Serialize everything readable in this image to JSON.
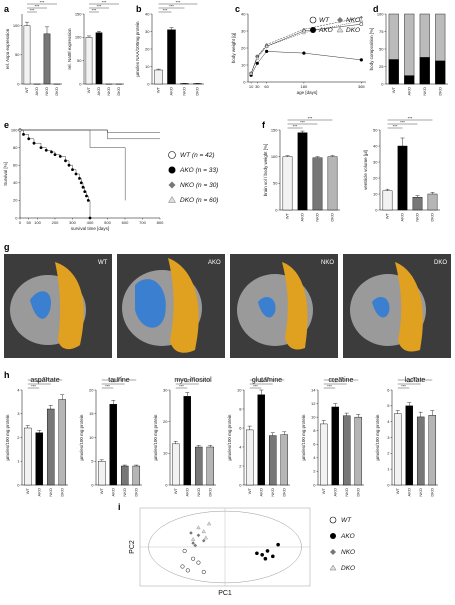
{
  "groups": [
    "WT",
    "AKO",
    "NKO",
    "DKO"
  ],
  "colors": {
    "WT": "#f2f2f2",
    "AKO": "#000000",
    "NKO": "#777777",
    "DKO": "#b5b5b5",
    "brain": "#e0a020",
    "ventricle": "#3a7fd0"
  },
  "panel_letters": {
    "a": "a",
    "b": "b",
    "c": "c",
    "d": "d",
    "e": "e",
    "f": "f",
    "g": "g",
    "h": "h",
    "i": "i"
  },
  "significance": "***",
  "sig_two": "**",
  "sig_one": "*",
  "chart_data": [
    {
      "id": "a1",
      "type": "bar",
      "ylabel": "rel. Aspa expression",
      "categories": [
        "WT",
        "AKO",
        "NKO",
        "DKO"
      ],
      "values": [
        100,
        0,
        86,
        0
      ],
      "errors": [
        6,
        0,
        12,
        0
      ],
      "ylim": [
        0,
        120
      ],
      "ticks": [
        0,
        50,
        100
      ]
    },
    {
      "id": "a2",
      "type": "bar",
      "ylabel": "rel. Nat8l expression",
      "categories": [
        "WT",
        "AKO",
        "NKO",
        "DKO"
      ],
      "values": [
        100,
        110,
        0,
        0
      ],
      "errors": [
        3,
        3,
        0,
        0
      ],
      "ylim": [
        0,
        150
      ],
      "ticks": [
        0,
        50,
        100,
        150
      ]
    },
    {
      "id": "b",
      "type": "bar",
      "ylabel": "µmoles NAA/100mg protein",
      "categories": [
        "WT",
        "AKO",
        "NKO",
        "DKO"
      ],
      "values": [
        8,
        31,
        0.3,
        0.3
      ],
      "errors": [
        0.5,
        1.2,
        0.1,
        0.1
      ],
      "ylim": [
        0,
        40
      ],
      "ticks": [
        0,
        10,
        20,
        30,
        40
      ]
    },
    {
      "id": "c",
      "type": "line",
      "ylabel": "body weight [g]",
      "xlabel": "age [days]",
      "x": [
        10,
        30,
        60,
        180,
        365
      ],
      "xticks": [
        10,
        30,
        60,
        180,
        365
      ],
      "ylim": [
        0,
        40
      ],
      "yticks": [
        0,
        10,
        20,
        30,
        40
      ],
      "series": [
        {
          "name": "WT",
          "values": [
            5,
            15,
            21,
            30,
            34
          ]
        },
        {
          "name": "AKO",
          "values": [
            4,
            11,
            18,
            17,
            13
          ]
        },
        {
          "name": "NKO",
          "values": [
            5,
            15,
            22,
            31,
            38
          ]
        },
        {
          "name": "DKO",
          "values": [
            5,
            14,
            21,
            29,
            36
          ]
        }
      ]
    },
    {
      "id": "d",
      "type": "bar",
      "ylabel": "body composition [%]",
      "categories": [
        "WT",
        "AKO",
        "NKO",
        "DKO"
      ],
      "values_lower": [
        35,
        12,
        38,
        33
      ],
      "values_total": [
        100,
        100,
        100,
        100
      ],
      "ylim": [
        0,
        100
      ],
      "ticks": [
        0,
        25,
        50,
        75,
        100
      ]
    },
    {
      "id": "e",
      "type": "line",
      "ylabel": "Survival [%]",
      "xlabel": "survival time [days]",
      "xlim": [
        0,
        800
      ],
      "xticks": [
        0,
        50,
        100,
        200,
        300,
        400,
        500,
        600,
        700,
        800
      ],
      "ylim": [
        0,
        100
      ],
      "yticks": [
        0,
        20,
        40,
        60,
        80,
        100
      ],
      "series": [
        {
          "name": "WT",
          "n": "(n = 42)",
          "x": [
            0,
            800
          ],
          "values": [
            100,
            90
          ]
        },
        {
          "name": "AKO",
          "n": "(n = 33)",
          "x": [
            0,
            20,
            50,
            80,
            120,
            150,
            180,
            200,
            230,
            260,
            280,
            300,
            320,
            340,
            350,
            360,
            370,
            380,
            390,
            400
          ],
          "values": [
            100,
            95,
            90,
            85,
            80,
            77,
            75,
            72,
            70,
            65,
            60,
            55,
            50,
            45,
            40,
            35,
            30,
            25,
            20,
            0
          ]
        },
        {
          "name": "NKO",
          "n": "(n = 30)",
          "x": [
            0,
            800
          ],
          "values": [
            100,
            97
          ]
        },
        {
          "name": "DKO",
          "n": "(n = 60)",
          "x": [
            0,
            400,
            600,
            601
          ],
          "values": [
            100,
            80,
            80,
            20
          ]
        }
      ]
    },
    {
      "id": "f1",
      "type": "bar",
      "ylabel": "brain vol / body weight [%]",
      "categories": [
        "WT",
        "AKO",
        "NKO",
        "DKO"
      ],
      "values": [
        100,
        145,
        98,
        100
      ],
      "errors": [
        2,
        3,
        2,
        2
      ],
      "ylim": [
        0,
        150
      ],
      "ticks": [
        0,
        50,
        100,
        150
      ]
    },
    {
      "id": "f2",
      "type": "bar",
      "ylabel": "ventricle volume [µl]",
      "categories": [
        "WT",
        "AKO",
        "NKO",
        "DKO"
      ],
      "values": [
        12,
        40,
        8,
        10
      ],
      "errors": [
        1,
        5,
        1,
        1
      ],
      "ylim": [
        0,
        50
      ],
      "ticks": [
        0,
        10,
        20,
        30,
        40,
        50
      ]
    },
    {
      "id": "h1",
      "type": "bar",
      "title": "aspartate",
      "ylabel": "µmoles/100 mg protein",
      "categories": [
        "WT",
        "AKO",
        "NKO",
        "DKO"
      ],
      "values": [
        2.4,
        2.2,
        3.2,
        3.6
      ],
      "errors": [
        0.1,
        0.1,
        0.15,
        0.2
      ],
      "ylim": [
        0,
        4
      ],
      "ticks": [
        0,
        1,
        2,
        3,
        4
      ]
    },
    {
      "id": "h2",
      "type": "bar",
      "title": "taurine",
      "ylabel": "µmoles/100 mg protein",
      "categories": [
        "WT",
        "AKO",
        "NKO",
        "DKO"
      ],
      "values": [
        5,
        17,
        4,
        4
      ],
      "errors": [
        0.3,
        0.8,
        0.2,
        0.2
      ],
      "ylim": [
        0,
        20
      ],
      "ticks": [
        0,
        5,
        10,
        15,
        20
      ]
    },
    {
      "id": "h3",
      "type": "bar",
      "title": "myo-inositol",
      "ylabel": "µmoles/100 mg protein",
      "categories": [
        "WT",
        "AKO",
        "NKO",
        "DKO"
      ],
      "values": [
        13,
        28,
        12,
        12
      ],
      "errors": [
        0.8,
        1.2,
        0.5,
        0.5
      ],
      "ylim": [
        0,
        30
      ],
      "ticks": [
        0,
        10,
        20,
        30
      ]
    },
    {
      "id": "h4",
      "type": "bar",
      "title": "glutamine",
      "ylabel": "µmoles/100 mg protein",
      "categories": [
        "WT",
        "AKO",
        "NKO",
        "DKO"
      ],
      "values": [
        5.8,
        9.5,
        5.2,
        5.3
      ],
      "errors": [
        0.4,
        0.5,
        0.3,
        0.3
      ],
      "ylim": [
        0,
        10
      ],
      "ticks": [
        0,
        2,
        4,
        6,
        8,
        10
      ]
    },
    {
      "id": "h5",
      "type": "bar",
      "title": "creatine",
      "ylabel": "µmoles/100 mg protein",
      "categories": [
        "WT",
        "AKO",
        "NKO",
        "DKO"
      ],
      "values": [
        9,
        11.5,
        10.2,
        10
      ],
      "errors": [
        0.5,
        0.5,
        0.4,
        0.4
      ],
      "ylim": [
        0,
        14
      ],
      "ticks": [
        0,
        2,
        4,
        6,
        8,
        10,
        12,
        14
      ]
    },
    {
      "id": "h6",
      "type": "bar",
      "title": "lactate",
      "ylabel": "µmoles/100 mg protein",
      "categories": [
        "WT",
        "AKO",
        "NKO",
        "DKO"
      ],
      "values": [
        4.5,
        5,
        4.3,
        4.4
      ],
      "errors": [
        0.2,
        0.2,
        0.3,
        0.3
      ],
      "ylim": [
        0,
        6
      ],
      "ticks": [
        0,
        1,
        2,
        3,
        4,
        5,
        6
      ]
    },
    {
      "id": "i",
      "type": "scatter",
      "xlabel": "PC1",
      "ylabel": "PC2",
      "xlim": [
        -8,
        8
      ],
      "ylim": [
        -5,
        5
      ],
      "series": [
        {
          "name": "WT",
          "points": [
            [
              -4,
              -2.5
            ],
            [
              -3.5,
              -3
            ],
            [
              -3,
              -1.5
            ],
            [
              -2.5,
              -2
            ],
            [
              -3.8,
              -0.5
            ],
            [
              -2,
              -3.2
            ]
          ]
        },
        {
          "name": "AKO",
          "points": [
            [
              3,
              -0.8
            ],
            [
              3.5,
              -1
            ],
            [
              4,
              -0.5
            ],
            [
              4.5,
              -1.2
            ],
            [
              5,
              0.3
            ],
            [
              3.8,
              -1.5
            ]
          ]
        },
        {
          "name": "NKO",
          "points": [
            [
              -3,
              0.5
            ],
            [
              -2.5,
              1.5
            ],
            [
              -2,
              0.8
            ],
            [
              -3.2,
              1.8
            ],
            [
              -2.8,
              0.2
            ]
          ]
        },
        {
          "name": "DKO",
          "points": [
            [
              -2,
              2
            ],
            [
              -1.5,
              3
            ],
            [
              -2.5,
              2.5
            ],
            [
              -3,
              1
            ],
            [
              -1.8,
              1.2
            ]
          ]
        }
      ]
    }
  ],
  "legend_c": {
    "wt": "WT",
    "ako": "AKO",
    "nko": "NKO",
    "dko": "DKO"
  },
  "legend_e": {
    "wt": "WT (n = 42)",
    "ako": "AKO (n = 33)",
    "nko": "NKO (n = 30)",
    "dko": "DKO (n = 60)"
  },
  "legend_i": {
    "wt": "WT",
    "ako": "AKO",
    "nko": "NKO",
    "dko": "DKO"
  },
  "mri_labels": [
    "WT",
    "AKO",
    "NKO",
    "DKO"
  ]
}
